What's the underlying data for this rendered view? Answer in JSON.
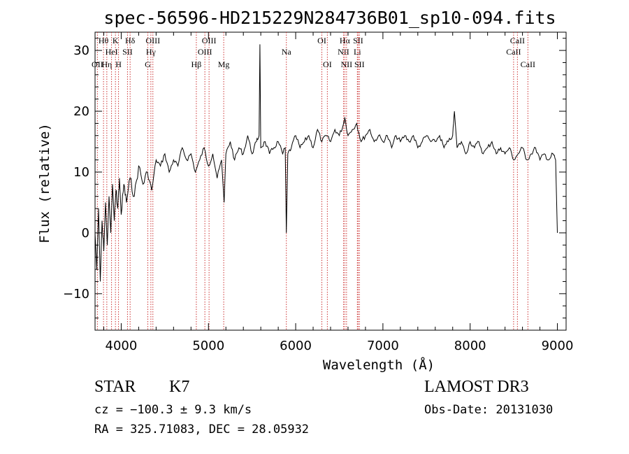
{
  "chart_data": {
    "type": "line",
    "title": "spec-56596-HD215229N284736B01_sp10-094.fits",
    "xlabel": "Wavelength (Å)",
    "ylabel": "Flux (relative)",
    "xlim": [
      3700,
      9100
    ],
    "ylim": [
      -16,
      33
    ],
    "xticks": [
      4000,
      5000,
      6000,
      7000,
      8000,
      9000
    ],
    "yticks": [
      -10,
      0,
      10,
      20,
      30
    ],
    "ytick_labels": [
      "−10",
      "0",
      "10",
      "20",
      "30"
    ],
    "series": [
      {
        "name": "flux",
        "x": [
          3700,
          3720,
          3740,
          3760,
          3780,
          3800,
          3820,
          3840,
          3860,
          3880,
          3900,
          3920,
          3940,
          3960,
          3980,
          4000,
          4030,
          4060,
          4100,
          4150,
          4200,
          4250,
          4300,
          4350,
          4400,
          4450,
          4500,
          4550,
          4600,
          4650,
          4700,
          4750,
          4800,
          4850,
          4900,
          4950,
          5000,
          5050,
          5100,
          5150,
          5180,
          5200,
          5250,
          5300,
          5350,
          5400,
          5450,
          5500,
          5550,
          5580,
          5590,
          5600,
          5650,
          5700,
          5750,
          5800,
          5850,
          5880,
          5893,
          5910,
          5950,
          6000,
          6050,
          6100,
          6150,
          6200,
          6250,
          6300,
          6350,
          6400,
          6450,
          6500,
          6550,
          6563,
          6600,
          6650,
          6700,
          6750,
          6800,
          6850,
          6900,
          6950,
          7000,
          7050,
          7100,
          7150,
          7200,
          7250,
          7300,
          7350,
          7400,
          7450,
          7500,
          7550,
          7600,
          7650,
          7700,
          7750,
          7800,
          7820,
          7850,
          7900,
          7950,
          8000,
          8050,
          8100,
          8150,
          8200,
          8250,
          8300,
          8350,
          8400,
          8450,
          8500,
          8550,
          8600,
          8650,
          8700,
          8750,
          8800,
          8850,
          8900,
          8950,
          8980,
          9000
        ],
        "y": [
          0,
          -6,
          4,
          -8,
          2,
          -3,
          5,
          -2,
          6,
          0,
          8,
          2,
          7,
          4,
          9,
          3,
          8,
          5,
          9,
          6,
          11,
          8,
          10,
          7,
          12,
          11,
          13,
          10,
          12,
          11,
          14,
          12,
          13,
          10,
          12,
          14,
          11,
          13,
          9,
          12,
          5,
          13,
          15,
          12,
          14,
          13,
          16,
          13,
          15,
          16,
          31,
          14,
          15,
          13,
          14,
          15,
          13,
          14,
          0,
          13,
          14,
          16,
          14,
          15,
          16,
          14,
          17,
          15,
          16,
          15,
          17,
          16,
          18,
          19,
          16,
          17,
          18,
          15,
          16,
          17,
          15,
          16,
          15,
          16,
          14,
          16,
          15,
          16,
          15,
          16,
          14,
          15,
          16,
          15,
          15,
          16,
          14,
          15,
          16,
          20,
          14,
          15,
          13,
          15,
          14,
          15,
          13,
          14,
          15,
          13,
          14,
          13,
          14,
          12,
          13,
          14,
          12,
          13,
          14,
          12,
          13,
          12,
          13,
          12,
          0
        ]
      }
    ],
    "lines": [
      {
        "label": "OII",
        "wavelength": 3727,
        "row": 3
      },
      {
        "label": "Hθ",
        "wavelength": 3797,
        "row": 1
      },
      {
        "label": "Hη",
        "wavelength": 3835,
        "row": 3
      },
      {
        "label": "HeI",
        "wavelength": 3889,
        "row": 2
      },
      {
        "label": "K",
        "wavelength": 3934,
        "row": 1
      },
      {
        "label": "H",
        "wavelength": 3969,
        "row": 3
      },
      {
        "label": "SII",
        "wavelength": 4072,
        "row": 2
      },
      {
        "label": "Hδ",
        "wavelength": 4102,
        "row": 1
      },
      {
        "label": "G",
        "wavelength": 4305,
        "row": 3
      },
      {
        "label": "Hγ",
        "wavelength": 4340,
        "row": 2
      },
      {
        "label": "OIII",
        "wavelength": 4363,
        "row": 1
      },
      {
        "label": "Hβ",
        "wavelength": 4861,
        "row": 3
      },
      {
        "label": "OIII",
        "wavelength": 4959,
        "row": 2
      },
      {
        "label": "OIII",
        "wavelength": 5007,
        "row": 1
      },
      {
        "label": "Mg",
        "wavelength": 5175,
        "row": 3
      },
      {
        "label": "Na",
        "wavelength": 5893,
        "row": 2
      },
      {
        "label": "OI",
        "wavelength": 6300,
        "row": 1
      },
      {
        "label": "OI",
        "wavelength": 6363,
        "row": 3
      },
      {
        "label": "NII",
        "wavelength": 6548,
        "row": 2
      },
      {
        "label": "Hα",
        "wavelength": 6563,
        "row": 1
      },
      {
        "label": "NII",
        "wavelength": 6583,
        "row": 3
      },
      {
        "label": "Li",
        "wavelength": 6707,
        "row": 2
      },
      {
        "label": "SII",
        "wavelength": 6716,
        "row": 1
      },
      {
        "label": "SII",
        "wavelength": 6731,
        "row": 3
      },
      {
        "label": "CaII",
        "wavelength": 8498,
        "row": 2
      },
      {
        "label": "CaII",
        "wavelength": 8542,
        "row": 1
      },
      {
        "label": "CaII",
        "wavelength": 8662,
        "row": 3
      }
    ]
  },
  "info": {
    "class": "STAR",
    "subclass": "K7",
    "survey": "LAMOST DR3",
    "cz": "cz = −100.3 ± 9.3 km/s",
    "obs_date": "Obs-Date: 20131030",
    "coords": "RA = 325.71083, DEC =  28.05932"
  },
  "colors": {
    "line_marker": "#cc3333",
    "spectrum": "#000000"
  }
}
